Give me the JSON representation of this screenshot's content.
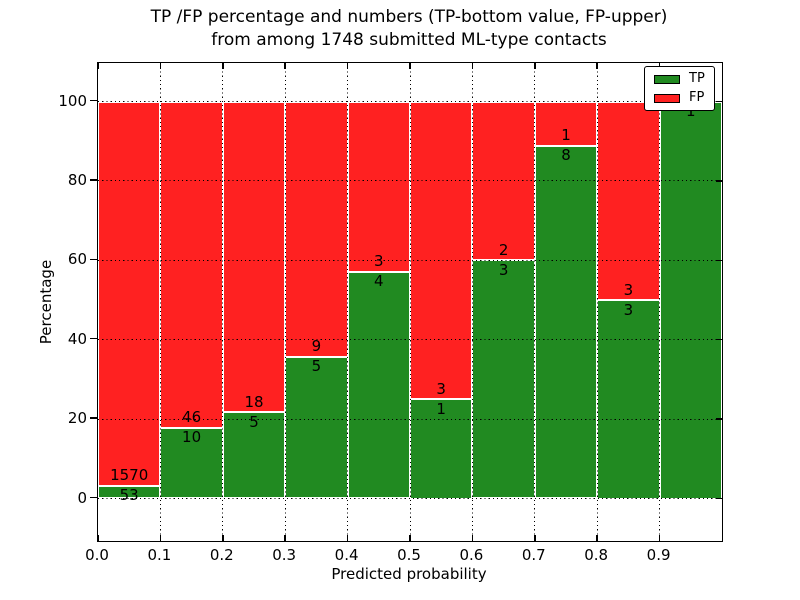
{
  "title": {
    "line1": "TP /FP percentage and numbers (TP-bottom value, FP-upper)",
    "line2": "from among 1748 submitted ML-type contacts"
  },
  "axes": {
    "xlabel": "Predicted probability",
    "ylabel": "Percentage",
    "yticks": [
      0,
      20,
      40,
      60,
      80,
      100
    ],
    "ytick_labels": [
      "0",
      "20",
      "40",
      "60",
      "80",
      "100"
    ],
    "xticks": [
      0.0,
      0.1,
      0.2,
      0.3,
      0.4,
      0.5,
      0.6,
      0.7,
      0.8,
      0.9
    ],
    "xtick_labels": [
      "0.0",
      "0.1",
      "0.2",
      "0.3",
      "0.4",
      "0.5",
      "0.6",
      "0.7",
      "0.8",
      "0.9"
    ],
    "grid": "dotted black, both axes"
  },
  "legend": {
    "position": "upper right",
    "entries": [
      {
        "label": "TP",
        "color": "#218a21"
      },
      {
        "label": "FP",
        "color": "#ff2121"
      }
    ]
  },
  "chart_data": {
    "type": "bar",
    "stacked": true,
    "orientation": "vertical",
    "title": "TP /FP percentage and numbers (TP-bottom value, FP-upper) from among 1748 submitted ML-type contacts",
    "xlabel": "Predicted probability",
    "ylabel": "Percentage",
    "bin_edges": [
      0.0,
      0.1,
      0.2,
      0.3,
      0.4,
      0.5,
      0.6,
      0.7,
      0.8,
      0.9,
      1.0
    ],
    "series": [
      {
        "name": "TP",
        "color": "#218a21",
        "counts": [
          53,
          10,
          5,
          5,
          4,
          1,
          3,
          8,
          3,
          1
        ],
        "percent_of_bin": [
          3.3,
          17.9,
          21.7,
          35.7,
          57.1,
          25.0,
          60.0,
          88.9,
          50.0,
          100.0
        ]
      },
      {
        "name": "FP",
        "color": "#ff2121",
        "counts": [
          1570,
          46,
          18,
          9,
          3,
          3,
          2,
          1,
          3,
          0
        ],
        "percent_of_bin": [
          96.7,
          82.1,
          78.3,
          64.3,
          42.9,
          75.0,
          40.0,
          11.1,
          50.0,
          0.0
        ]
      }
    ],
    "total_contacts": 1748,
    "xlim": [
      0.0,
      1.0
    ],
    "ylim_display": [
      -11,
      110
    ],
    "yticks": [
      0,
      20,
      40,
      60,
      80,
      100
    ],
    "legend_position": "upper right",
    "bar_edge_color": "#ffffff"
  }
}
